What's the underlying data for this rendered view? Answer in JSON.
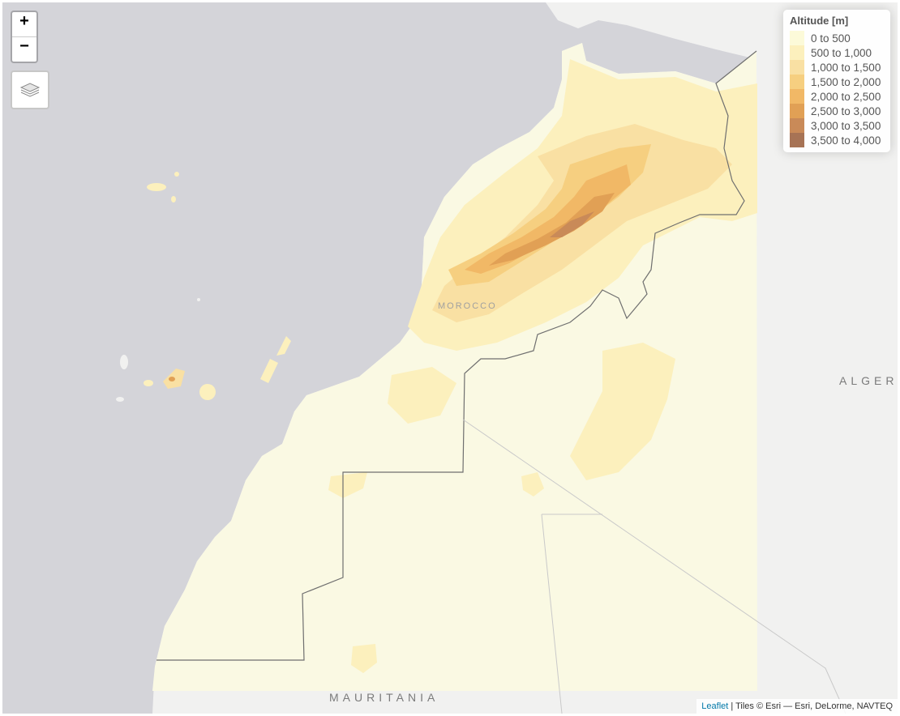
{
  "zoom": {
    "in_label": "+",
    "out_label": "−"
  },
  "layers_control": {
    "icon": "layers-icon"
  },
  "legend": {
    "title": "Altitude [m]",
    "items": [
      {
        "label": "0 to 500",
        "color": "#fcfad9"
      },
      {
        "label": "500 to 1,000",
        "color": "#fcf0bd"
      },
      {
        "label": "1,000 to 1,500",
        "color": "#f9e0a3"
      },
      {
        "label": "1,500 to 2,000",
        "color": "#f6cf80"
      },
      {
        "label": "2,000 to 2,500",
        "color": "#f1b866"
      },
      {
        "label": "2,500 to 3,000",
        "color": "#e1a055"
      },
      {
        "label": "3,000 to 3,500",
        "color": "#c98a58"
      },
      {
        "label": "3,500 to 4,000",
        "color": "#a77355"
      }
    ]
  },
  "labels": {
    "morocco": "MOROCCO",
    "algeria": "ALGERIA",
    "mauritania": "MAURITANIA"
  },
  "attribution": {
    "leaflet": "Leaflet",
    "tiles": " | Tiles © Esri — Esri, DeLorme, NAVTEQ"
  },
  "colors": {
    "ocean": "#d4d4d9",
    "land": "#f1f1f0",
    "border": "#6f6f6f"
  }
}
